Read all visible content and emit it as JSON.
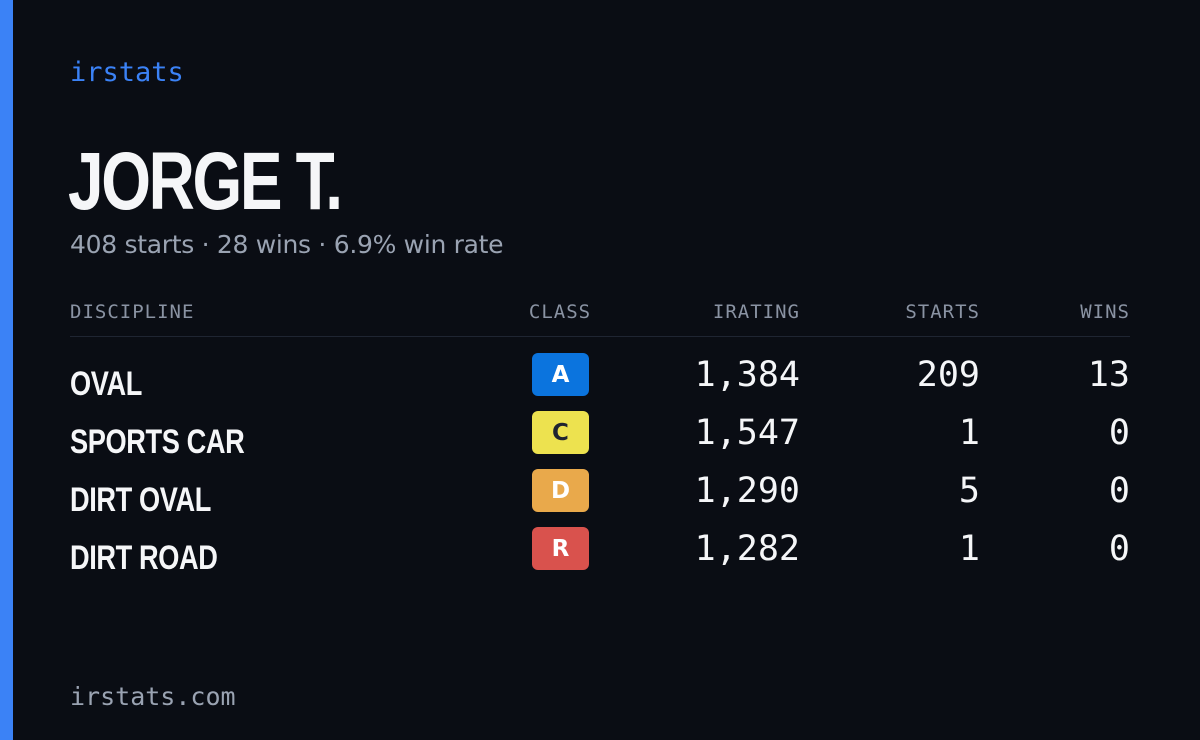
{
  "brand": "irstats",
  "player": {
    "name": "JORGE T.",
    "summary": "408 starts · 28 wins · 6.9% win rate"
  },
  "table": {
    "headers": {
      "discipline": "DISCIPLINE",
      "class": "CLASS",
      "irating": "IRATING",
      "starts": "STARTS",
      "wins": "WINS"
    },
    "rows": [
      {
        "discipline": "OVAL",
        "class": "A",
        "class_bg": "#0b74de",
        "class_fg": "#ffffff",
        "irating": "1,384",
        "starts": "209",
        "wins": "13"
      },
      {
        "discipline": "SPORTS CAR",
        "class": "C",
        "class_bg": "#ede24f",
        "class_fg": "#1f2430",
        "irating": "1,547",
        "starts": "1",
        "wins": "0"
      },
      {
        "discipline": "DIRT OVAL",
        "class": "D",
        "class_bg": "#e9a94b",
        "class_fg": "#ffffff",
        "irating": "1,290",
        "starts": "5",
        "wins": "0"
      },
      {
        "discipline": "DIRT ROAD",
        "class": "R",
        "class_bg": "#d9524d",
        "class_fg": "#ffffff",
        "irating": "1,282",
        "starts": "1",
        "wins": "0"
      }
    ]
  },
  "footer": "irstats.com",
  "colors": {
    "accent": "#3b82f6",
    "background": "#0a0d14",
    "muted_text": "#9aa3b2"
  }
}
